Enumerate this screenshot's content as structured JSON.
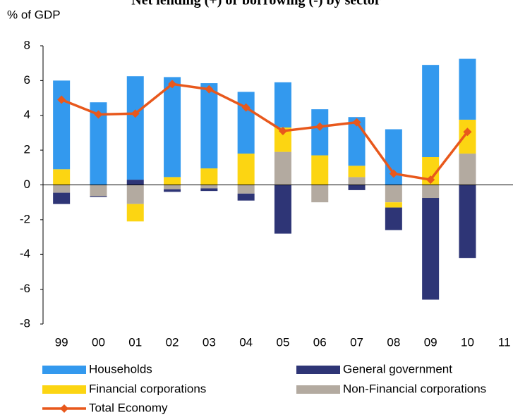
{
  "chart_data": {
    "type": "stacked-bar-line",
    "title": "Net lending (+) or borrowing (-) by sector",
    "y_label": "% of GDP",
    "categories": [
      "99",
      "00",
      "01",
      "02",
      "03",
      "04",
      "05",
      "06",
      "07",
      "08",
      "09",
      "10",
      "11"
    ],
    "series": [
      {
        "name": "Households",
        "color": "#3399ee",
        "type": "bar",
        "values": [
          5.1,
          4.75,
          5.95,
          5.75,
          4.9,
          3.55,
          2.6,
          2.65,
          2.8,
          3.2,
          5.3,
          3.5,
          null
        ]
      },
      {
        "name": "General government",
        "color": "#2e3576",
        "type": "bar",
        "values": [
          -0.65,
          -0.05,
          0.3,
          -0.15,
          -0.15,
          -0.4,
          -2.8,
          0,
          -0.3,
          -1.3,
          -5.85,
          -4.2,
          null
        ]
      },
      {
        "name": "Financial corporations",
        "color": "#fcd512",
        "type": "bar",
        "values": [
          0.9,
          0,
          -1.0,
          0.45,
          0.95,
          1.8,
          1.4,
          1.7,
          0.65,
          -0.3,
          1.6,
          1.95,
          null
        ]
      },
      {
        "name": "Non-Financial corporations",
        "color": "#b3aaa0",
        "type": "bar",
        "values": [
          -0.45,
          -0.65,
          -1.1,
          -0.25,
          -0.2,
          -0.5,
          1.9,
          -1.0,
          0.45,
          -1.0,
          -0.75,
          1.8,
          null
        ]
      },
      {
        "name": "Total Economy",
        "color": "#e8581c",
        "type": "line",
        "values": [
          4.9,
          4.05,
          4.1,
          5.8,
          5.5,
          4.45,
          3.1,
          3.35,
          3.6,
          0.65,
          0.3,
          3.05,
          null
        ]
      }
    ],
    "ylim": [
      -8,
      8
    ],
    "yticks": [
      -8,
      -6,
      -4,
      -2,
      0,
      2,
      4,
      6,
      8
    ]
  }
}
